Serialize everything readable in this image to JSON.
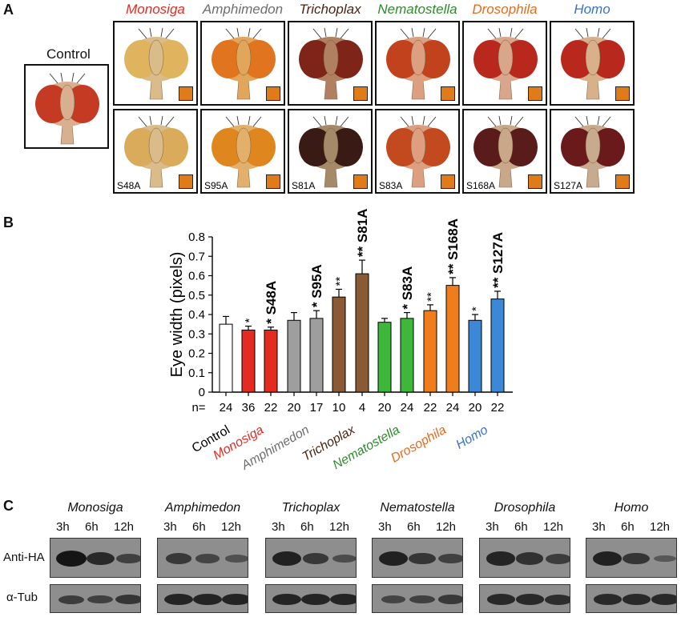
{
  "panelA": {
    "letter": "A",
    "control_label": "Control",
    "species": [
      {
        "name": "Monosiga",
        "color": "#e32b22",
        "mutant": "S48A",
        "top": {
          "eye": "#e0b35e",
          "head": "#d9bc8a"
        },
        "bottom": {
          "eye": "#d9ab5a",
          "head": "#d9bc8a"
        }
      },
      {
        "name": "Amphimedon",
        "color": "#6e6e6e",
        "mutant": "S95A",
        "top": {
          "eye": "#e0741f",
          "head": "#e2a65a"
        },
        "bottom": {
          "eye": "#e0861f",
          "head": "#e2b06a"
        }
      },
      {
        "name": "Trichoplax",
        "color": "#4a2414",
        "mutant": "S81A",
        "top": {
          "eye": "#7e2418",
          "head": "#b08060"
        },
        "bottom": {
          "eye": "#3a1a14",
          "head": "#a48a68"
        }
      },
      {
        "name": "Nematostella",
        "color": "#2f8a2d",
        "mutant": "S83A",
        "top": {
          "eye": "#c2421e",
          "head": "#dca080"
        },
        "bottom": {
          "eye": "#c24a1e",
          "head": "#dca080"
        }
      },
      {
        "name": "Drosophila",
        "color": "#e86a1c",
        "mutant": "S168A",
        "top": {
          "eye": "#b8281c",
          "head": "#d8a68a"
        },
        "bottom": {
          "eye": "#5a1c1a",
          "head": "#c8a888"
        }
      },
      {
        "name": "Homo",
        "color": "#3a72c4",
        "mutant": "S127A",
        "top": {
          "eye": "#b8281c",
          "head": "#d8b08a"
        },
        "bottom": {
          "eye": "#6a1a1a",
          "head": "#c8ab8e"
        }
      }
    ],
    "control_eye": "#c43a22"
  },
  "panelB": {
    "letter": "B",
    "n_label": "n=",
    "x_categories": [
      {
        "text": "Control",
        "color": "#000000"
      },
      {
        "text": "Monosiga",
        "color": "#e32b22"
      },
      {
        "text": "Amphimedon",
        "color": "#6e6e6e"
      },
      {
        "text": "Trichoplax",
        "color": "#4a2414"
      },
      {
        "text": "Nematostella",
        "color": "#2f8a2d"
      },
      {
        "text": "Drosophila",
        "color": "#e86a1c"
      },
      {
        "text": "Homo",
        "color": "#3a72c4"
      }
    ]
  },
  "chart_data": {
    "type": "bar",
    "ylabel": "Eye width (pixels)",
    "ylim": [
      0,
      0.8
    ],
    "yticks": [
      "0",
      "0.1",
      "0.2",
      "0.3",
      "0.4",
      "0.5",
      "0.6",
      "0.7",
      "0.8"
    ],
    "bars": [
      {
        "value": 0.35,
        "err": 0.04,
        "color": "#ffffff",
        "n": "24",
        "sig": "",
        "label": ""
      },
      {
        "value": 0.32,
        "err": 0.02,
        "color": "#e32b22",
        "n": "36",
        "sig": "*",
        "label": ""
      },
      {
        "value": 0.32,
        "err": 0.015,
        "color": "#e32b22",
        "n": "22",
        "sig": "*",
        "label": "S48A"
      },
      {
        "value": 0.37,
        "err": 0.04,
        "color": "#9e9e9e",
        "n": "20",
        "sig": "",
        "label": ""
      },
      {
        "value": 0.38,
        "err": 0.04,
        "color": "#9e9e9e",
        "n": "17",
        "sig": "*",
        "label": "S95A"
      },
      {
        "value": 0.49,
        "err": 0.04,
        "color": "#8a5a34",
        "n": "10",
        "sig": "**",
        "label": ""
      },
      {
        "value": 0.61,
        "err": 0.07,
        "color": "#8a5a34",
        "n": "4",
        "sig": "**",
        "label": "S81A"
      },
      {
        "value": 0.36,
        "err": 0.02,
        "color": "#3db83a",
        "n": "20",
        "sig": "",
        "label": ""
      },
      {
        "value": 0.38,
        "err": 0.03,
        "color": "#3db83a",
        "n": "24",
        "sig": "*",
        "label": "S83A"
      },
      {
        "value": 0.42,
        "err": 0.03,
        "color": "#f07d1c",
        "n": "22",
        "sig": "**",
        "label": ""
      },
      {
        "value": 0.55,
        "err": 0.04,
        "color": "#f07d1c",
        "n": "24",
        "sig": "**",
        "label": "S168A"
      },
      {
        "value": 0.37,
        "err": 0.03,
        "color": "#3b88d6",
        "n": "20",
        "sig": "*",
        "label": ""
      },
      {
        "value": 0.48,
        "err": 0.04,
        "color": "#3b88d6",
        "n": "22",
        "sig": "**",
        "label": "S127A"
      }
    ]
  },
  "panelC": {
    "letter": "C",
    "row_labels": [
      "Anti-HA",
      "α-Tub"
    ],
    "timepoints": [
      "3h",
      "6h",
      "12h"
    ],
    "blots": [
      {
        "name": "Monosiga",
        "ha": [
          1.0,
          0.75,
          0.45
        ],
        "tub": [
          0.5,
          0.45,
          0.6
        ]
      },
      {
        "name": "Amphimedon",
        "ha": [
          0.55,
          0.4,
          0.25
        ],
        "tub": [
          0.8,
          0.8,
          0.8
        ]
      },
      {
        "name": "Trichoplax",
        "ha": [
          0.85,
          0.55,
          0.3
        ],
        "tub": [
          0.8,
          0.8,
          0.8
        ]
      },
      {
        "name": "Nematostella",
        "ha": [
          0.85,
          0.6,
          0.45
        ],
        "tub": [
          0.4,
          0.45,
          0.55
        ]
      },
      {
        "name": "Drosophila",
        "ha": [
          0.8,
          0.65,
          0.5
        ],
        "tub": [
          0.75,
          0.75,
          0.7
        ]
      },
      {
        "name": "Homo",
        "ha": [
          0.85,
          0.6,
          0.15
        ],
        "tub": [
          0.75,
          0.75,
          0.75
        ]
      }
    ]
  }
}
